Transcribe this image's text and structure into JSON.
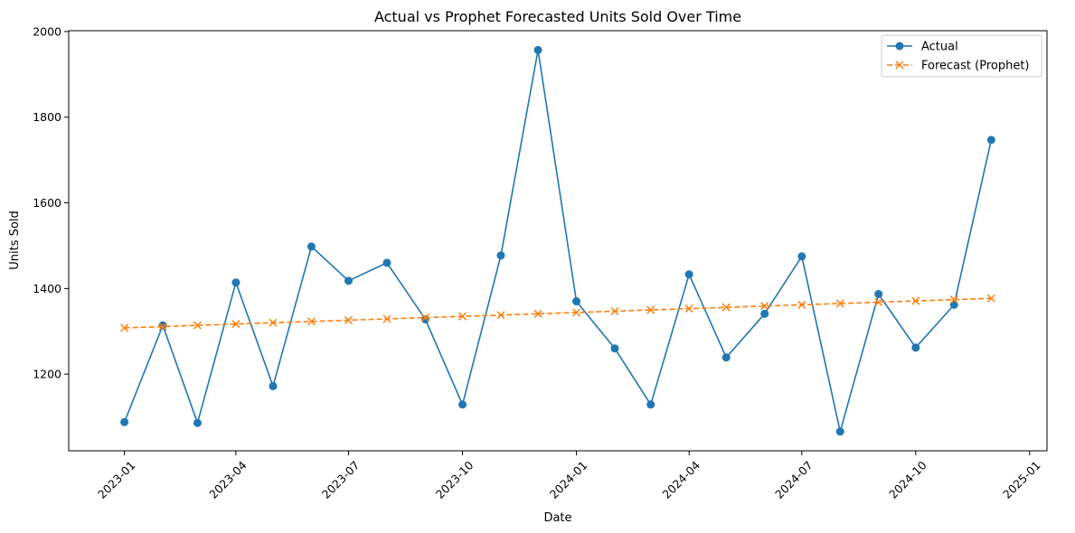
{
  "chart_data": {
    "type": "line",
    "title": "Actual vs Prophet Forecasted Units Sold Over Time",
    "xlabel": "Date",
    "ylabel": "Units Sold",
    "x": [
      "2023-01-01",
      "2023-02-01",
      "2023-03-01",
      "2023-04-01",
      "2023-05-01",
      "2023-06-01",
      "2023-07-01",
      "2023-08-01",
      "2023-09-01",
      "2023-10-01",
      "2023-11-01",
      "2023-12-01",
      "2024-01-01",
      "2024-02-01",
      "2024-03-01",
      "2024-04-01",
      "2024-05-01",
      "2024-06-01",
      "2024-07-01",
      "2024-08-01",
      "2024-09-01",
      "2024-10-01",
      "2024-11-01",
      "2024-12-01"
    ],
    "series": [
      {
        "name": "Actual",
        "color": "#1f77b4",
        "style": "solid",
        "marker": "circle",
        "values": [
          1088,
          1314,
          1086,
          1414,
          1172,
          1498,
          1418,
          1460,
          1328,
          1129,
          1477,
          1957,
          1370,
          1260,
          1129,
          1433,
          1239,
          1341,
          1475,
          1066,
          1387,
          1262,
          1362,
          1747
        ]
      },
      {
        "name": "Forecast (Prophet)",
        "color": "#ff7f0e",
        "style": "dashed",
        "marker": "x",
        "values": [
          1308,
          1311,
          1314,
          1317,
          1320,
          1323,
          1326,
          1329,
          1332,
          1335,
          1338,
          1341,
          1344,
          1347,
          1350,
          1353,
          1356,
          1359,
          1362,
          1365,
          1368,
          1371,
          1374,
          1377
        ]
      }
    ],
    "x_ticks": [
      "2023-01",
      "2023-04",
      "2023-07",
      "2023-10",
      "2024-01",
      "2024-04",
      "2024-07",
      "2024-10",
      "2025-01"
    ],
    "y_ticks": [
      1200,
      1400,
      1600,
      1800,
      2000
    ],
    "xlim": [
      "2022-11-17",
      "2025-01-15"
    ],
    "ylim": [
      1021,
      2002
    ],
    "grid": false,
    "legend_position": "top-right"
  }
}
